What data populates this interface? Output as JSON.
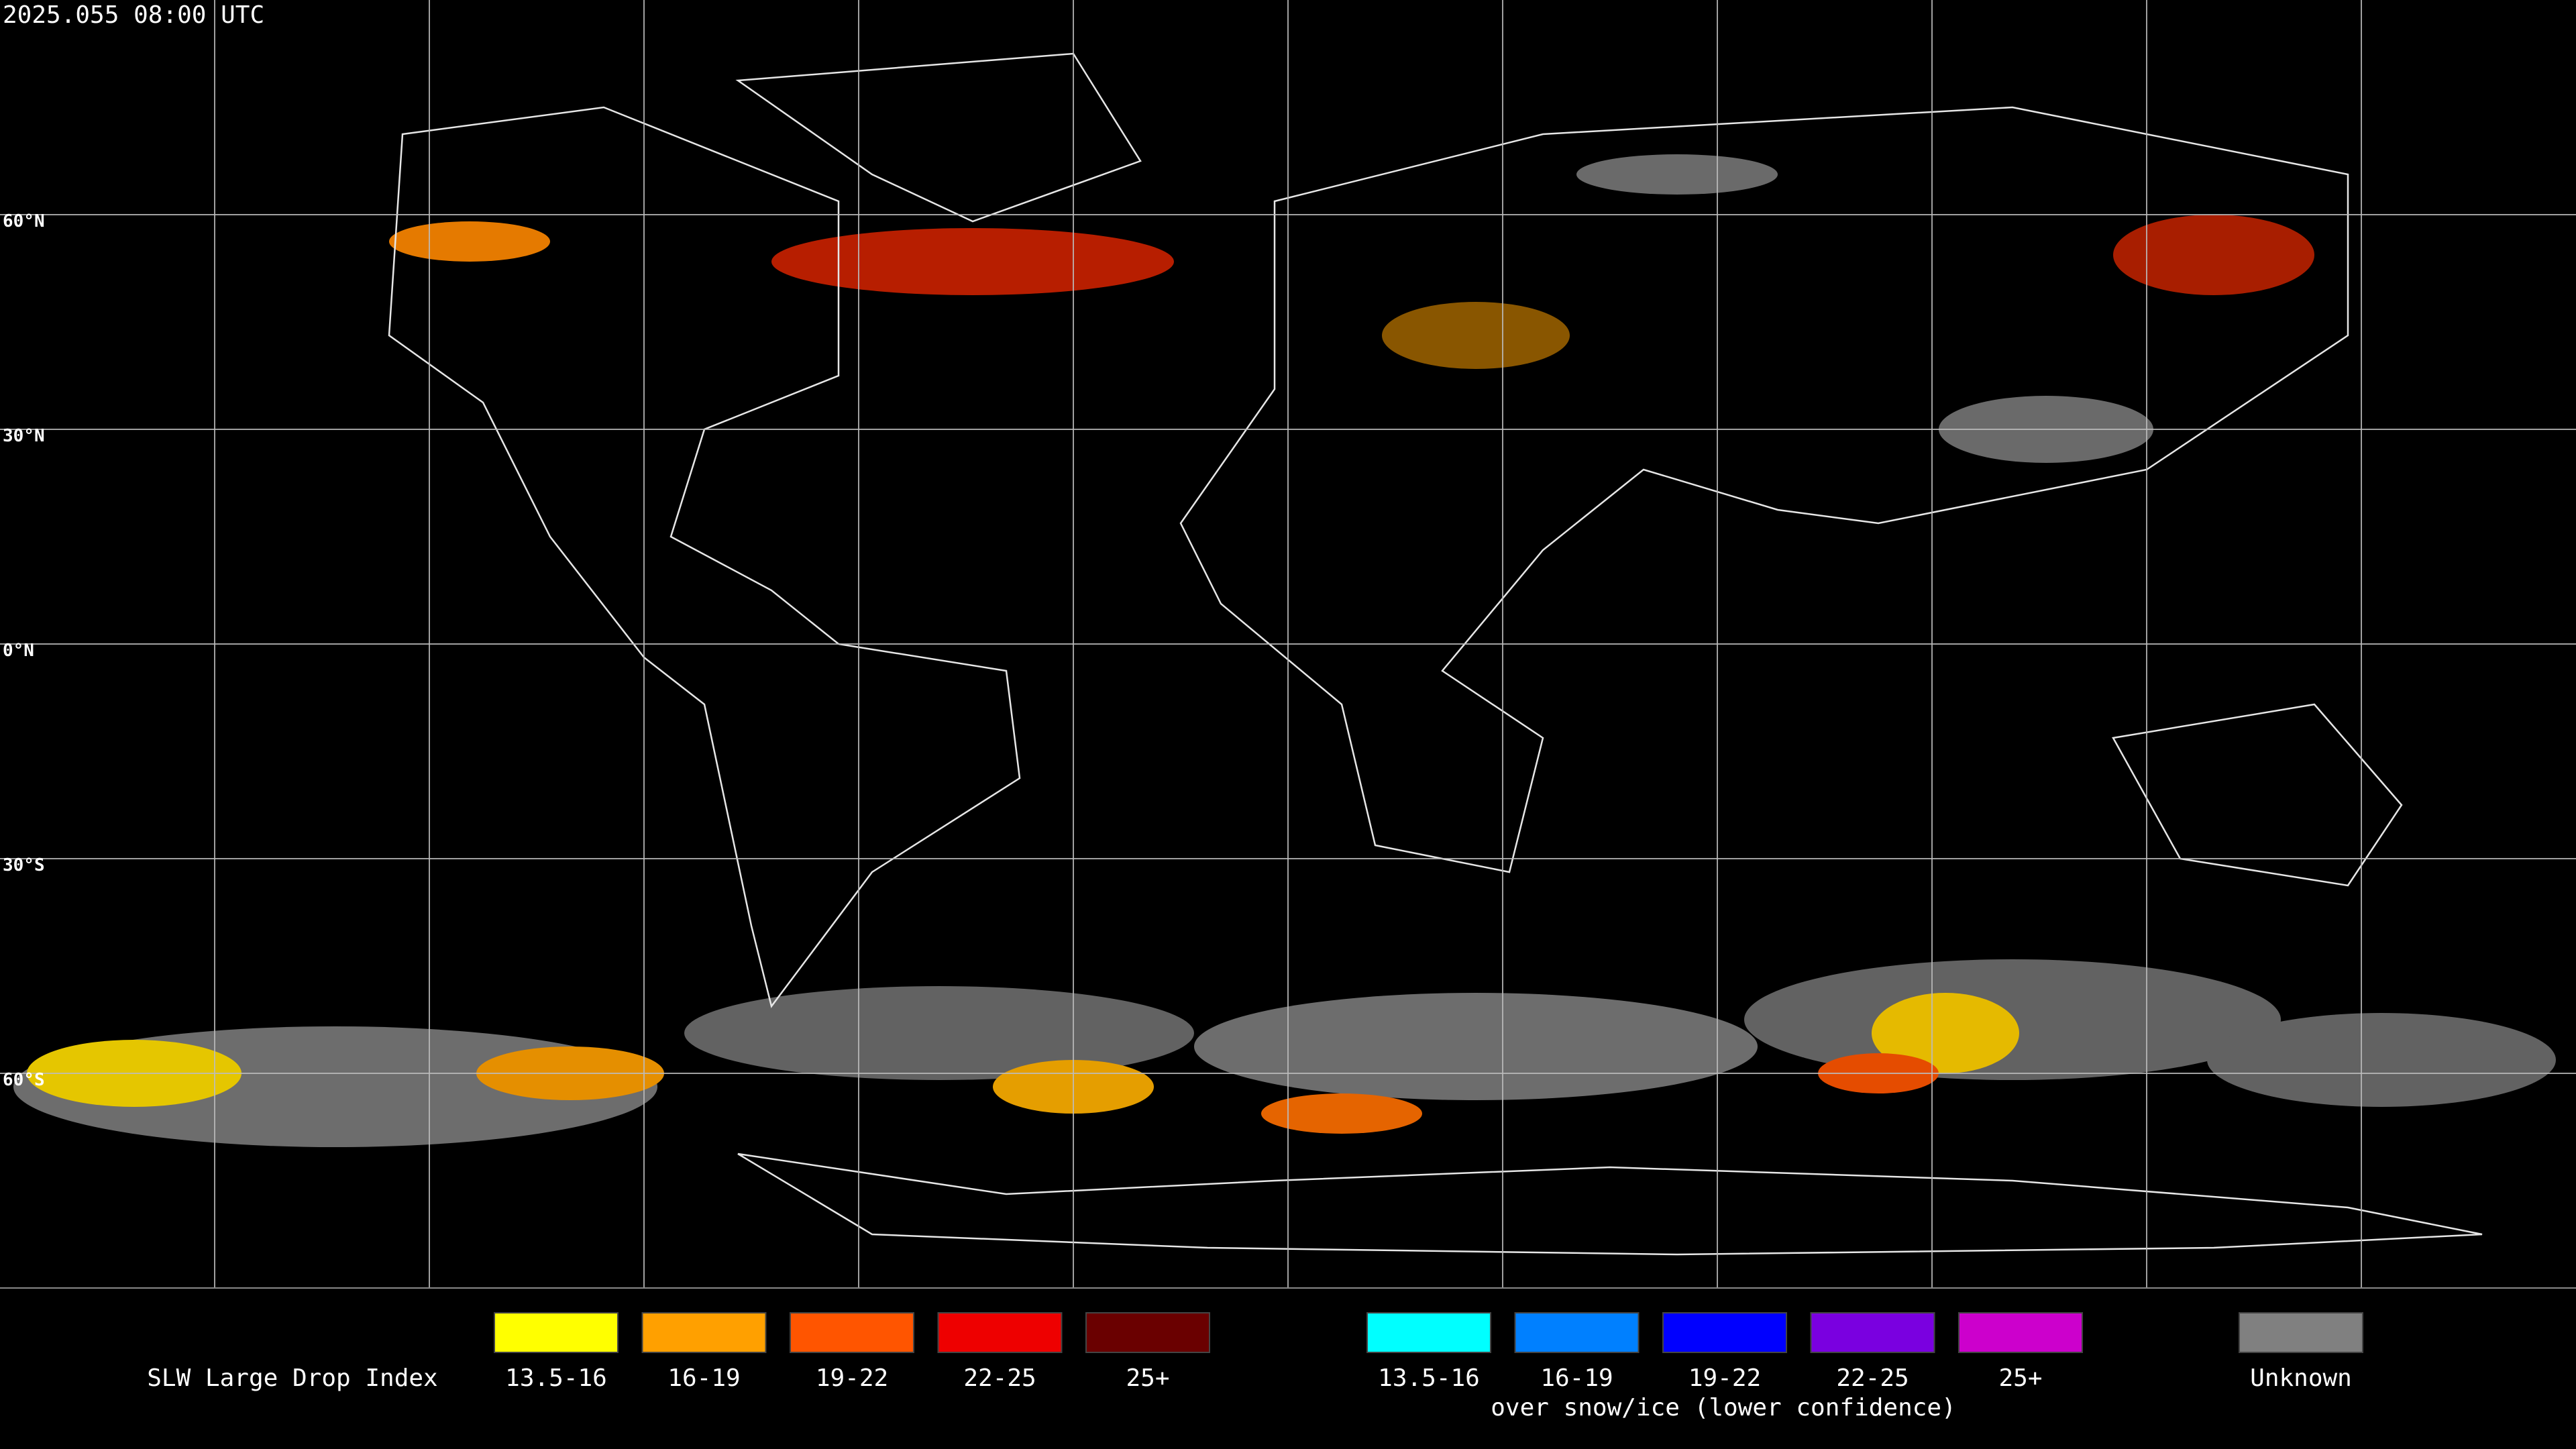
{
  "header": {
    "timestamp": "2025.055 08:00 UTC"
  },
  "map": {
    "lat_labels": [
      "60°N",
      "30°N",
      "0°N",
      "30°S",
      "60°S"
    ]
  },
  "legend": {
    "title": "SLW Large Drop Index",
    "liquid": [
      {
        "label": "13.5-16",
        "color": "#ffff00"
      },
      {
        "label": "16-19",
        "color": "#ffa000"
      },
      {
        "label": "19-22",
        "color": "#ff5500"
      },
      {
        "label": "22-25",
        "color": "#ee0000"
      },
      {
        "label": "25+",
        "color": "#6a0000"
      }
    ],
    "ice": [
      {
        "label": "13.5-16",
        "color": "#00ffff"
      },
      {
        "label": "16-19",
        "color": "#0080ff"
      },
      {
        "label": "19-22",
        "color": "#0000ff"
      },
      {
        "label": "22-25",
        "color": "#7a00e0"
      },
      {
        "label": "25+",
        "color": "#cc00cc"
      }
    ],
    "ice_note": "over snow/ice (lower confidence)",
    "unknown": {
      "label": "Unknown",
      "color": "#808080"
    }
  }
}
